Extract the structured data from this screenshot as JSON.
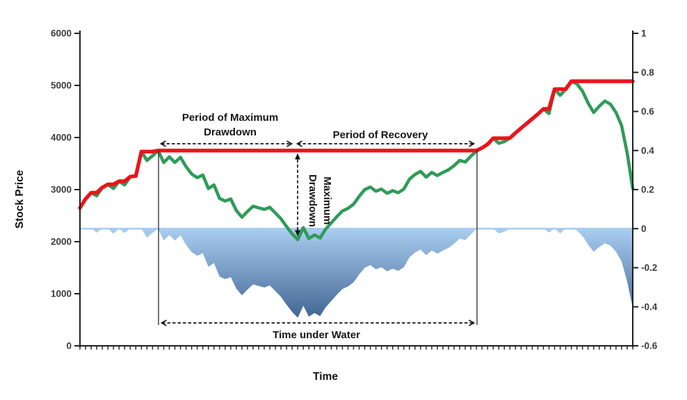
{
  "chart_data": {
    "type": "line",
    "title": "",
    "xlabel": "Time",
    "ylabel": "Stock Price",
    "left_axis": {
      "title": "Stock Price",
      "min": 0,
      "max": 6000,
      "tick_step": 1000,
      "ticks": [
        "6000",
        "5000",
        "4000",
        "3000",
        "2000",
        "1000",
        "0"
      ]
    },
    "right_axis": {
      "min": -0.6,
      "max": 1,
      "tick_step": 0.2,
      "ticks": [
        "1",
        "0.8",
        "0.6",
        "0.4",
        "0.2",
        "0",
        "-0.2",
        "-0.4",
        "-0.6"
      ]
    },
    "x_axis": {
      "title": "Time",
      "tick_count": 100,
      "labels_visible": false
    },
    "grid": "off",
    "legend": "none",
    "series": [
      {
        "name": "stock-price",
        "type": "line",
        "axis": "left",
        "color": "#2F9B59",
        "values": [
          2650,
          2820,
          2940,
          2880,
          3040,
          3100,
          3020,
          3160,
          3090,
          3250,
          3260,
          3730,
          3560,
          3650,
          3750,
          3520,
          3630,
          3520,
          3620,
          3440,
          3300,
          3230,
          3280,
          3020,
          3090,
          2830,
          2780,
          2820,
          2600,
          2470,
          2580,
          2680,
          2650,
          2620,
          2660,
          2550,
          2440,
          2290,
          2150,
          2040,
          2270,
          2060,
          2130,
          2070,
          2240,
          2360,
          2480,
          2590,
          2640,
          2720,
          2870,
          3000,
          3050,
          2970,
          3010,
          2930,
          2980,
          2940,
          3010,
          3200,
          3290,
          3350,
          3240,
          3330,
          3270,
          3330,
          3380,
          3460,
          3560,
          3530,
          3640,
          3740,
          3800,
          3870,
          3985,
          3890,
          3920,
          3990,
          4090,
          4180,
          4270,
          4360,
          4450,
          4550,
          4460,
          4930,
          4810,
          4930,
          5080,
          5030,
          4890,
          4660,
          4480,
          4600,
          4700,
          4640,
          4480,
          4230,
          3700,
          3020
        ]
      },
      {
        "name": "high-water-mark",
        "type": "line",
        "axis": "left",
        "color": "#E9151B",
        "derived": "running maximum of stock-price"
      },
      {
        "name": "drawdown",
        "type": "area",
        "axis": "right",
        "fill_top": "#A9CDEF",
        "fill_bottom": "#3E6290",
        "derived": "stock-price / running maximum - 1",
        "max_drawdown": -0.456
      }
    ],
    "colors": {
      "price_line": "#2F9B59",
      "high_water_line": "#E9151B",
      "drawdown_fill_top": "#A9CDEF",
      "drawdown_fill_bottom": "#3E6290",
      "drawdown_zero_line": "#A9CDEF",
      "axis": "#1f1f1f",
      "tick_label": "#3c3c3c",
      "annotation": "#161616"
    },
    "annotations": {
      "period_max_drawdown": {
        "text": "Period of Maximum Drawdown"
      },
      "period_recovery": {
        "text": "Period of Recovery"
      },
      "max_drawdown": {
        "lines": [
          "Maximum",
          "Drawdown"
        ]
      },
      "time_under_water": {
        "text": "Time under Water"
      }
    }
  }
}
